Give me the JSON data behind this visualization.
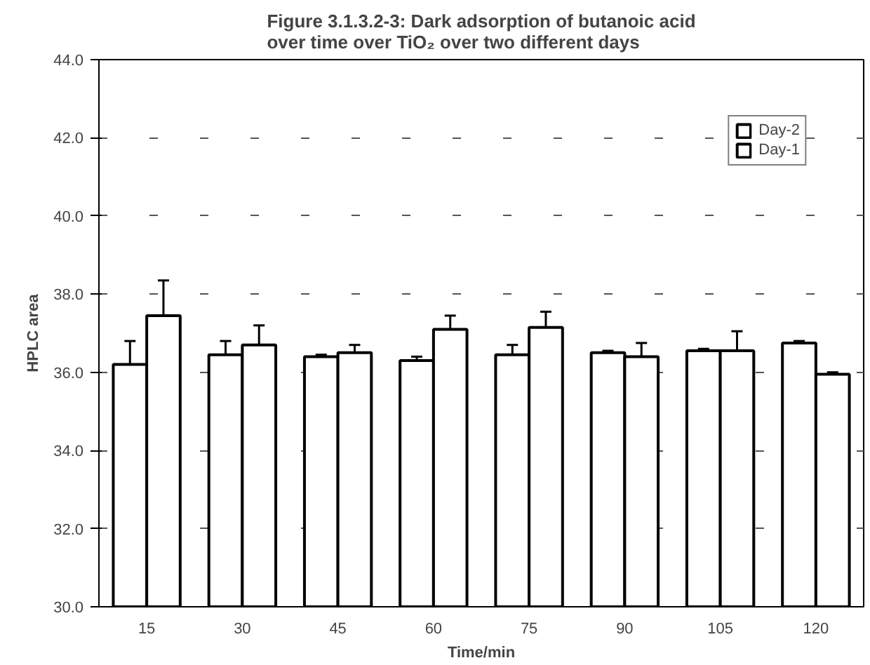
{
  "chart_data": {
    "type": "bar",
    "title": "Figure 3.1.3.2-3: Dark adsorption of butanoic acid over time over TiO₂ over two different days",
    "xlabel": "Time/min",
    "ylabel": "HPLC area",
    "categories": [
      "15",
      "30",
      "45",
      "60",
      "75",
      "90",
      "105",
      "120"
    ],
    "series": [
      {
        "name": "Day-2",
        "color": "#ffffff",
        "values": [
          36.2,
          36.45,
          36.4,
          36.3,
          36.45,
          36.5,
          36.55,
          36.75
        ],
        "errors": [
          0.6,
          0.35,
          0.05,
          0.1,
          0.25,
          0.05,
          0.05,
          0.05
        ]
      },
      {
        "name": "Day-1",
        "color": "#ffffff",
        "values": [
          37.45,
          36.7,
          36.5,
          37.1,
          37.15,
          36.4,
          36.55,
          35.95
        ],
        "errors": [
          0.9,
          0.5,
          0.2,
          0.35,
          0.4,
          0.35,
          0.5,
          0.05
        ]
      }
    ],
    "ylim": [
      30,
      44
    ],
    "yticks": [
      {
        "value": 30,
        "label": "30.0"
      },
      {
        "value": 32,
        "label": "32.0"
      },
      {
        "value": 34,
        "label": "34.0"
      },
      {
        "value": 36,
        "label": "36.0"
      },
      {
        "value": 38,
        "label": "38.0"
      },
      {
        "value": 40,
        "label": "40.0"
      },
      {
        "value": 42,
        "label": "42.0"
      },
      {
        "value": 44,
        "label": "44.0"
      }
    ],
    "grid": "y",
    "legend": "top right"
  }
}
